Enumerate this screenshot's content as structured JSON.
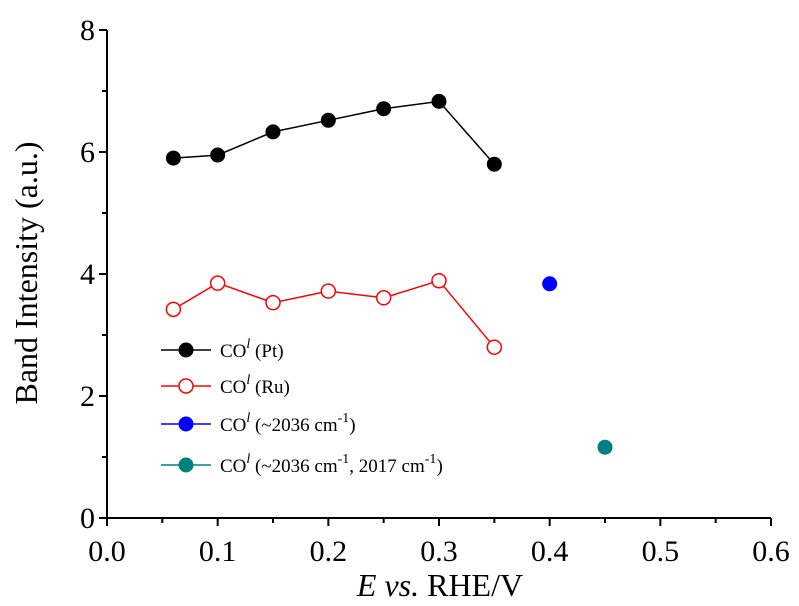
{
  "chart_data": {
    "type": "line",
    "xlabel": {
      "italic_part": "E vs.",
      "normal_part": " RHE/V"
    },
    "ylabel": "Band Intensity (a.u.)",
    "xlim": [
      0.0,
      0.6
    ],
    "ylim": [
      0,
      8
    ],
    "x_ticks": [
      "0.0",
      "0.1",
      "0.2",
      "0.3",
      "0.4",
      "0.5",
      "0.6"
    ],
    "y_ticks": [
      "0",
      "2",
      "4",
      "6",
      "8"
    ],
    "grid": false,
    "legend_position": "lower-left",
    "series": [
      {
        "legend": {
          "base": "CO",
          "sup": "l",
          "rest": " (Pt)"
        },
        "color": "#000000",
        "marker": "filled-circle",
        "connected": true,
        "points": [
          [
            0.06,
            5.9
          ],
          [
            0.1,
            5.95
          ],
          [
            0.15,
            6.33
          ],
          [
            0.2,
            6.52
          ],
          [
            0.25,
            6.71
          ],
          [
            0.3,
            6.83
          ],
          [
            0.35,
            5.8
          ]
        ]
      },
      {
        "legend": {
          "base": "CO",
          "sup": "l",
          "rest": " (Ru)"
        },
        "color": "#ff0000",
        "marker": "open-circle",
        "connected": true,
        "points": [
          [
            0.06,
            3.42
          ],
          [
            0.1,
            3.85
          ],
          [
            0.15,
            3.53
          ],
          [
            0.2,
            3.72
          ],
          [
            0.25,
            3.61
          ],
          [
            0.3,
            3.89
          ],
          [
            0.35,
            2.8
          ]
        ]
      },
      {
        "legend": {
          "base": "CO",
          "sup": "l",
          "rest": " (~2036 cm",
          "sup2": "-1",
          "rest2": ")"
        },
        "color": "#0000ff",
        "marker": "filled-circle",
        "connected": false,
        "points": [
          [
            0.4,
            3.84
          ]
        ]
      },
      {
        "legend": {
          "base": "CO",
          "sup": "l",
          "rest": " (~2036 cm",
          "sup2": "-1",
          "rest2": ", 2017 cm",
          "sup3": "-1",
          "rest3": ")"
        },
        "color": "#008080",
        "marker": "filled-circle",
        "connected": false,
        "points": [
          [
            0.45,
            1.16
          ]
        ]
      }
    ]
  }
}
